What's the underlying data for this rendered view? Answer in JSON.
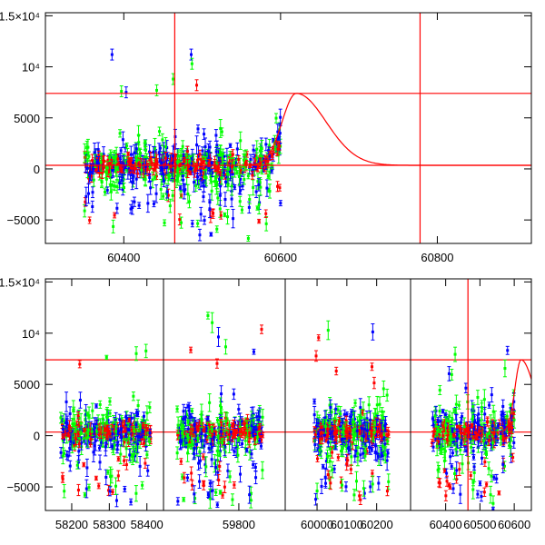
{
  "chart_data": [
    {
      "type": "scatter",
      "panel": "top",
      "title": "",
      "xlabel": "",
      "ylabel": "",
      "xlim": [
        60300,
        60920
      ],
      "ylim": [
        -7300,
        15300
      ],
      "x_ticks": [
        60400,
        60600,
        60800
      ],
      "x_tick_labels": [
        "60400",
        "60600",
        "60800"
      ],
      "y_ticks": [
        -5000,
        0,
        5000,
        10000,
        15000
      ],
      "y_tick_labels": [
        "−5000",
        "0",
        "5000",
        "10⁴",
        "1.5×10⁴"
      ],
      "hlines": [
        7400,
        350
      ],
      "vlines": [
        60465,
        60778
      ],
      "model_curve": {
        "description_values": "peak near x=60620 at y≈7400, baseline ≈350",
        "peak_x": 60620,
        "peak_y": 7400,
        "baseline": 350
      },
      "series_colors": [
        "#ff0000",
        "#00ff00",
        "#0000ff"
      ],
      "x_data_range": [
        60350,
        60600
      ],
      "outliers": [
        {
          "x": 60385,
          "y": 11200,
          "color": "#0000ff"
        },
        {
          "x": 60397,
          "y": 7600,
          "color": "#00ff00"
        },
        {
          "x": 60403,
          "y": 7500,
          "color": "#0000ff"
        },
        {
          "x": 60442,
          "y": 7700,
          "color": "#00ff00"
        },
        {
          "x": 60463,
          "y": 8800,
          "color": "#00ff00"
        },
        {
          "x": 60486,
          "y": 11200,
          "color": "#0000ff"
        },
        {
          "x": 60487,
          "y": 10300,
          "color": "#00ff00"
        },
        {
          "x": 60493,
          "y": 8200,
          "color": "#ff0000"
        }
      ]
    },
    {
      "type": "scatter",
      "panel": "bottom",
      "title": "",
      "xlabel": "",
      "ylabel": "",
      "ylim": [
        -7300,
        15300
      ],
      "segments": [
        {
          "xlim": [
            58130,
            58420
          ],
          "x_ticks": [
            58200,
            58300,
            58400
          ],
          "x_tick_labels": [
            "58200",
            "58300",
            "58400"
          ],
          "data_range": [
            58170,
            58410
          ]
        },
        {
          "xlim": [
            59610,
            59890
          ],
          "x_ticks": [
            59800
          ],
          "x_tick_labels": [
            "59800"
          ],
          "data_range": [
            59620,
            59870
          ]
        },
        {
          "xlim": [
            59945,
            60265
          ],
          "x_ticks": [
            60000,
            60100,
            60200
          ],
          "x_tick_labels": [
            "60000",
            "60100",
            "60200"
          ],
          "data_range": [
            59990,
            60240
          ]
        },
        {
          "xlim": [
            60340,
            60650
          ],
          "x_ticks": [
            60400,
            60500,
            60600
          ],
          "x_tick_labels": [
            "60400",
            "60500",
            "60600"
          ],
          "data_range": [
            60360,
            60600
          ]
        }
      ],
      "y_ticks": [
        -5000,
        0,
        5000,
        10000,
        15000
      ],
      "y_tick_labels": [
        "−5000",
        "0",
        "5000",
        "10⁴",
        "1.5×10⁴"
      ],
      "hlines": [
        7400,
        350
      ],
      "vlines": [
        60465
      ],
      "model_curve": {
        "peak_x": 60620,
        "peak_y": 7400,
        "baseline": 350
      },
      "series_colors": [
        "#ff0000",
        "#00ff00",
        "#0000ff"
      ]
    }
  ]
}
